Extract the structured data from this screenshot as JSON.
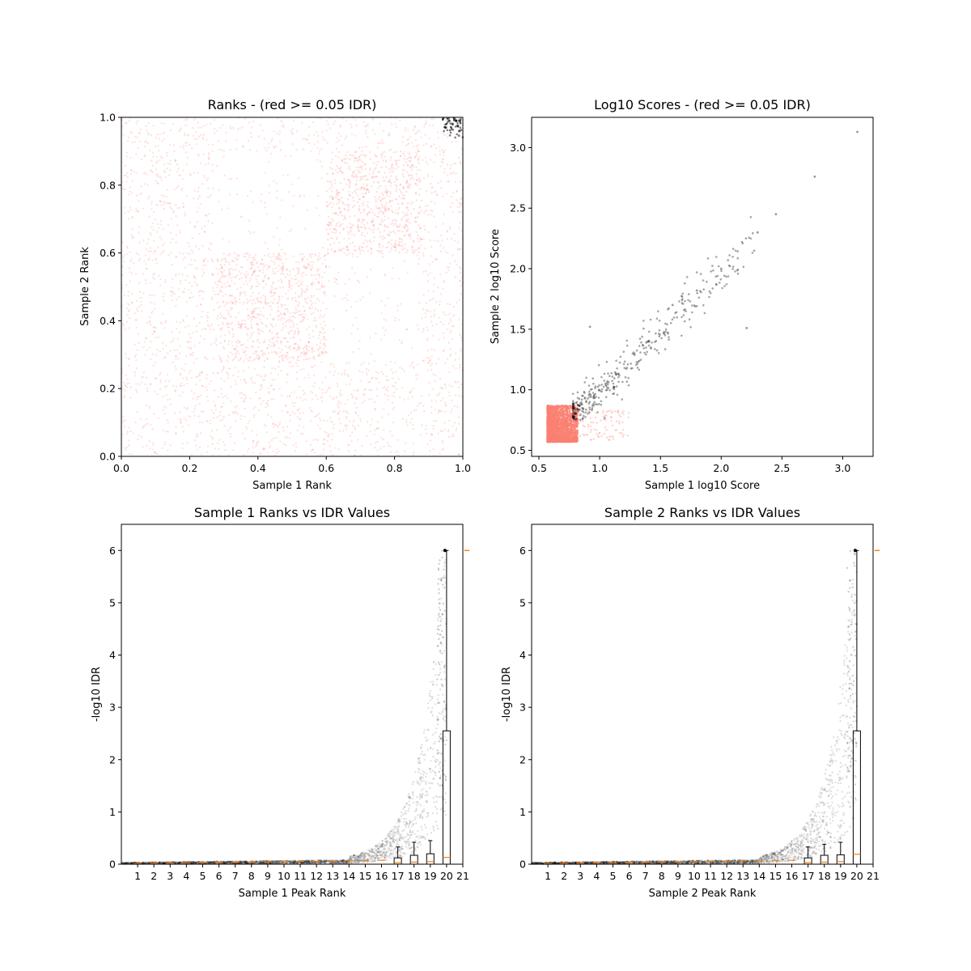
{
  "chart_data": [
    {
      "id": "ranks",
      "type": "scatter",
      "title": "Ranks - (red >= 0.05 IDR)",
      "xlabel": "Sample 1 Rank",
      "ylabel": "Sample 2 Rank",
      "xlim": [
        0,
        1
      ],
      "ylim": [
        0,
        1
      ],
      "xticks": [
        "0.0",
        "0.2",
        "0.4",
        "0.6",
        "0.8",
        "1.0"
      ],
      "yticks": [
        "0.0",
        "0.2",
        "0.4",
        "0.6",
        "0.8",
        "1.0"
      ],
      "grid": false,
      "colors": {
        "low_idr": "#fa8072",
        "high_idr": "#000000"
      },
      "series": [
        {
          "values_description": "dense uniform cloud over [0,1]x[0,1] with denser blocks near (0.28-0.6, 0.28-0.6) and (0.6-0.88, 0.6-0.9)",
          "color": "#fa8072"
        },
        {
          "points": [
            [
              0.95,
              0.97
            ],
            [
              0.97,
              0.98
            ],
            [
              0.98,
              0.99
            ],
            [
              0.99,
              0.96
            ],
            [
              0.96,
              0.99
            ],
            [
              0.99,
              0.99
            ],
            [
              0.985,
              0.975
            ],
            [
              0.975,
              0.995
            ]
          ],
          "color": "#000000"
        }
      ]
    },
    {
      "id": "scores",
      "type": "scatter",
      "title": "Log10 Scores - (red >= 0.05 IDR)",
      "xlabel": "Sample 1 log10 Score",
      "ylabel": "Sample 2 log10 Score",
      "xlim": [
        0.44,
        3.25
      ],
      "ylim": [
        0.45,
        3.25
      ],
      "xticks": [
        "0.5",
        "1.0",
        "1.5",
        "2.0",
        "2.5",
        "3.0"
      ],
      "yticks": [
        "0.5",
        "1.0",
        "1.5",
        "2.0",
        "2.5",
        "3.0"
      ],
      "grid": false,
      "colors": {
        "low_idr": "#fa8072",
        "high_idr": "#000000"
      },
      "series": [
        {
          "values_description": "dense cluster x 0.57-0.85, y 0.57-0.90",
          "color": "#fa8072"
        },
        {
          "points": [
            [
              3.12,
              3.13
            ],
            [
              2.77,
              2.76
            ],
            [
              2.45,
              2.45
            ],
            [
              2.21,
              1.51
            ],
            [
              0.92,
              1.52
            ],
            [
              1.8,
              1.82
            ],
            [
              1.6,
              1.7
            ],
            [
              2.0,
              2.0
            ],
            [
              2.3,
              2.3
            ],
            [
              1.4,
              1.4
            ]
          ],
          "color": "#000000"
        }
      ]
    },
    {
      "id": "s1-idr",
      "type": "scatter",
      "title": "Sample 1 Ranks vs IDR Values",
      "xlabel": "Sample 1 Peak Rank",
      "ylabel": "-log10 IDR",
      "xlim": [
        0,
        21
      ],
      "ylim": [
        0,
        6.5
      ],
      "xticks": [
        "1",
        "2",
        "3",
        "4",
        "5",
        "6",
        "7",
        "8",
        "9",
        "10",
        "11",
        "12",
        "13",
        "14",
        "15",
        "16",
        "17",
        "18",
        "19",
        "20",
        "21"
      ],
      "yticks": [
        "0",
        "1",
        "2",
        "3",
        "4",
        "5",
        "6"
      ],
      "grid": false,
      "boxplots": [
        {
          "position": 17,
          "q1": 0.0,
          "median": 0.03,
          "q3": 0.12,
          "whisker_high": 0.33
        },
        {
          "position": 18,
          "q1": 0.0,
          "median": 0.04,
          "q3": 0.17,
          "whisker_high": 0.42
        },
        {
          "position": 19,
          "q1": 0.0,
          "median": 0.05,
          "q3": 0.2,
          "whisker_high": 0.45
        },
        {
          "position": 20,
          "q1": 0.0,
          "median": 0.13,
          "q3": 2.55,
          "whisker_high": 6.0
        }
      ],
      "max_value": 6.0
    },
    {
      "id": "s2-idr",
      "type": "scatter",
      "title": "Sample 2 Ranks vs IDR Values",
      "xlabel": "Sample 2 Peak Rank",
      "ylabel": "-log10 IDR",
      "xlim": [
        0,
        21
      ],
      "ylim": [
        0,
        6.5
      ],
      "xticks": [
        "1",
        "2",
        "3",
        "4",
        "5",
        "6",
        "7",
        "8",
        "9",
        "10",
        "11",
        "12",
        "13",
        "14",
        "15",
        "16",
        "17",
        "18",
        "19",
        "20",
        "21"
      ],
      "yticks": [
        "0",
        "1",
        "2",
        "3",
        "4",
        "5",
        "6"
      ],
      "grid": false,
      "boxplots": [
        {
          "position": 17,
          "q1": 0.0,
          "median": 0.03,
          "q3": 0.12,
          "whisker_high": 0.33
        },
        {
          "position": 18,
          "q1": 0.0,
          "median": 0.04,
          "q3": 0.17,
          "whisker_high": 0.38
        },
        {
          "position": 19,
          "q1": 0.0,
          "median": 0.05,
          "q3": 0.18,
          "whisker_high": 0.42
        },
        {
          "position": 20,
          "q1": 0.0,
          "median": 0.19,
          "q3": 2.55,
          "whisker_high": 6.0
        }
      ],
      "max_value": 6.0
    }
  ]
}
